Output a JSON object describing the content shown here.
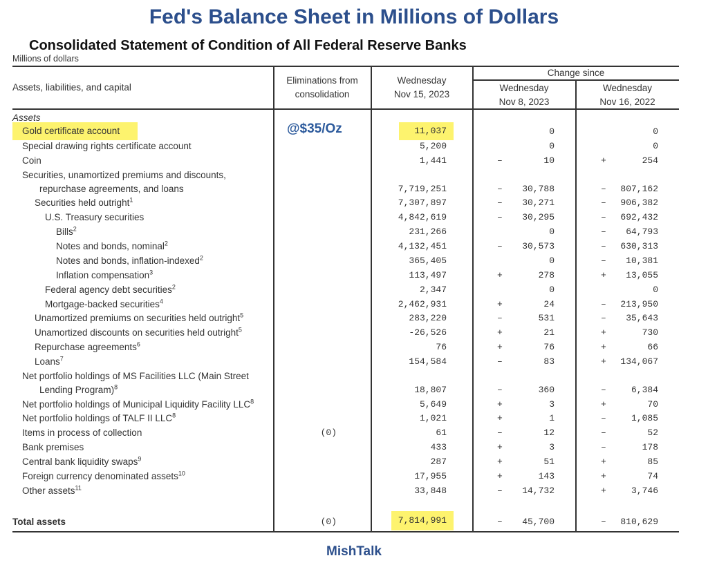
{
  "title": "Fed's Balance Sheet in Millions of Dollars",
  "subtitle": "Consolidated Statement of Condition of All Federal Reserve Banks",
  "units": "Millions of dollars",
  "annotation": "@$35/Oz",
  "footer": "MishTalk",
  "highlight_color": "#fdf36e",
  "title_color": "#2c4f8c",
  "headers": {
    "col1": "Assets, liabilities, and capital",
    "col2_l1": "Eliminations from",
    "col2_l2": "consolidation",
    "col3_l1": "Wednesday",
    "col3_l2": "Nov 15, 2023",
    "change_since": "Change since",
    "col4_l1": "Wednesday",
    "col4_l2": "Nov 8, 2023",
    "col5_l1": "Wednesday",
    "col5_l2": "Nov 16, 2022"
  },
  "section": "Assets",
  "rows": [
    {
      "label": "Gold certificate account",
      "indent": 0,
      "value": "11,037",
      "c1s": "",
      "c1": "0",
      "c2s": "",
      "c2": "0",
      "highlight": true
    },
    {
      "label": "Special drawing rights certificate account",
      "indent": 0,
      "value": "5,200",
      "c1s": "",
      "c1": "0",
      "c2s": "",
      "c2": "0"
    },
    {
      "label": "Coin",
      "indent": 0,
      "value": "1,441",
      "c1s": "–",
      "c1": "10",
      "c2s": "+",
      "c2": "254"
    },
    {
      "label": "Securities, unamortized premiums and discounts,",
      "label2": "repurchase agreements, and loans",
      "indent": 0,
      "value": "7,719,251",
      "c1s": "–",
      "c1": "30,788",
      "c2s": "–",
      "c2": "807,162"
    },
    {
      "label": "Securities held outright",
      "sup": "1",
      "indent": 1,
      "value": "7,307,897",
      "c1s": "–",
      "c1": "30,271",
      "c2s": "–",
      "c2": "906,382"
    },
    {
      "label": "U.S. Treasury securities",
      "indent": 2,
      "value": "4,842,619",
      "c1s": "–",
      "c1": "30,295",
      "c2s": "–",
      "c2": "692,432"
    },
    {
      "label": "Bills",
      "sup": "2",
      "indent": 3,
      "value": "231,266",
      "c1s": "",
      "c1": "0",
      "c2s": "–",
      "c2": "64,793"
    },
    {
      "label": "Notes and bonds, nominal",
      "sup": "2",
      "indent": 3,
      "value": "4,132,451",
      "c1s": "–",
      "c1": "30,573",
      "c2s": "–",
      "c2": "630,313"
    },
    {
      "label": "Notes and bonds, inflation-indexed",
      "sup": "2",
      "indent": 3,
      "value": "365,405",
      "c1s": "",
      "c1": "0",
      "c2s": "–",
      "c2": "10,381"
    },
    {
      "label": "Inflation compensation",
      "sup": "3",
      "indent": 3,
      "value": "113,497",
      "c1s": "+",
      "c1": "278",
      "c2s": "+",
      "c2": "13,055"
    },
    {
      "label": "Federal agency debt securities",
      "sup": "2",
      "indent": 2,
      "value": "2,347",
      "c1s": "",
      "c1": "0",
      "c2s": "",
      "c2": "0"
    },
    {
      "label": "Mortgage-backed securities",
      "sup": "4",
      "indent": 2,
      "value": "2,462,931",
      "c1s": "+",
      "c1": "24",
      "c2s": "–",
      "c2": "213,950"
    },
    {
      "label": "Unamortized premiums on securities held outright",
      "sup": "5",
      "indent": 1,
      "value": "283,220",
      "c1s": "–",
      "c1": "531",
      "c2s": "–",
      "c2": "35,643"
    },
    {
      "label": "Unamortized discounts on securities held outright",
      "sup": "5",
      "indent": 1,
      "value": "-26,526",
      "c1s": "+",
      "c1": "21",
      "c2s": "+",
      "c2": "730"
    },
    {
      "label": "Repurchase agreements",
      "sup": "6",
      "indent": 1,
      "value": "76",
      "c1s": "+",
      "c1": "76",
      "c2s": "+",
      "c2": "66"
    },
    {
      "label": "Loans",
      "sup": "7",
      "indent": 1,
      "value": "154,584",
      "c1s": "–",
      "c1": "83",
      "c2s": "+",
      "c2": "134,067"
    },
    {
      "label": "Net portfolio holdings of MS Facilities LLC (Main Street",
      "label2": "Lending Program)",
      "sup": "8",
      "indent": 0,
      "value": "18,807",
      "c1s": "–",
      "c1": "360",
      "c2s": "–",
      "c2": "6,384"
    },
    {
      "label": "Net portfolio holdings of Municipal Liquidity Facility LLC",
      "sup": "8",
      "indent": 0,
      "value": "5,649",
      "c1s": "+",
      "c1": "3",
      "c2s": "+",
      "c2": "70"
    },
    {
      "label": "Net portfolio holdings of TALF II LLC",
      "sup": "8",
      "indent": 0,
      "value": "1,021",
      "c1s": "+",
      "c1": "1",
      "c2s": "–",
      "c2": "1,085"
    },
    {
      "label": "Items in process of collection",
      "indent": 0,
      "elim": "(0)",
      "value": "61",
      "c1s": "–",
      "c1": "12",
      "c2s": "–",
      "c2": "52"
    },
    {
      "label": "Bank premises",
      "indent": 0,
      "value": "433",
      "c1s": "+",
      "c1": "3",
      "c2s": "–",
      "c2": "178"
    },
    {
      "label": "Central bank liquidity swaps",
      "sup": "9",
      "indent": 0,
      "value": "287",
      "c1s": "+",
      "c1": "51",
      "c2s": "+",
      "c2": "85"
    },
    {
      "label": "Foreign currency denominated assets",
      "sup": "10",
      "indent": 0,
      "value": "17,955",
      "c1s": "+",
      "c1": "143",
      "c2s": "+",
      "c2": "74"
    },
    {
      "label": "Other assets",
      "sup": "11",
      "indent": 0,
      "value": "33,848",
      "c1s": "–",
      "c1": "14,732",
      "c2s": "+",
      "c2": "3,746"
    }
  ],
  "total": {
    "label": "Total assets",
    "elim": "(0)",
    "value": "7,814,991",
    "c1s": "–",
    "c1": "45,700",
    "c2s": "–",
    "c2": "810,629",
    "highlight": true
  }
}
